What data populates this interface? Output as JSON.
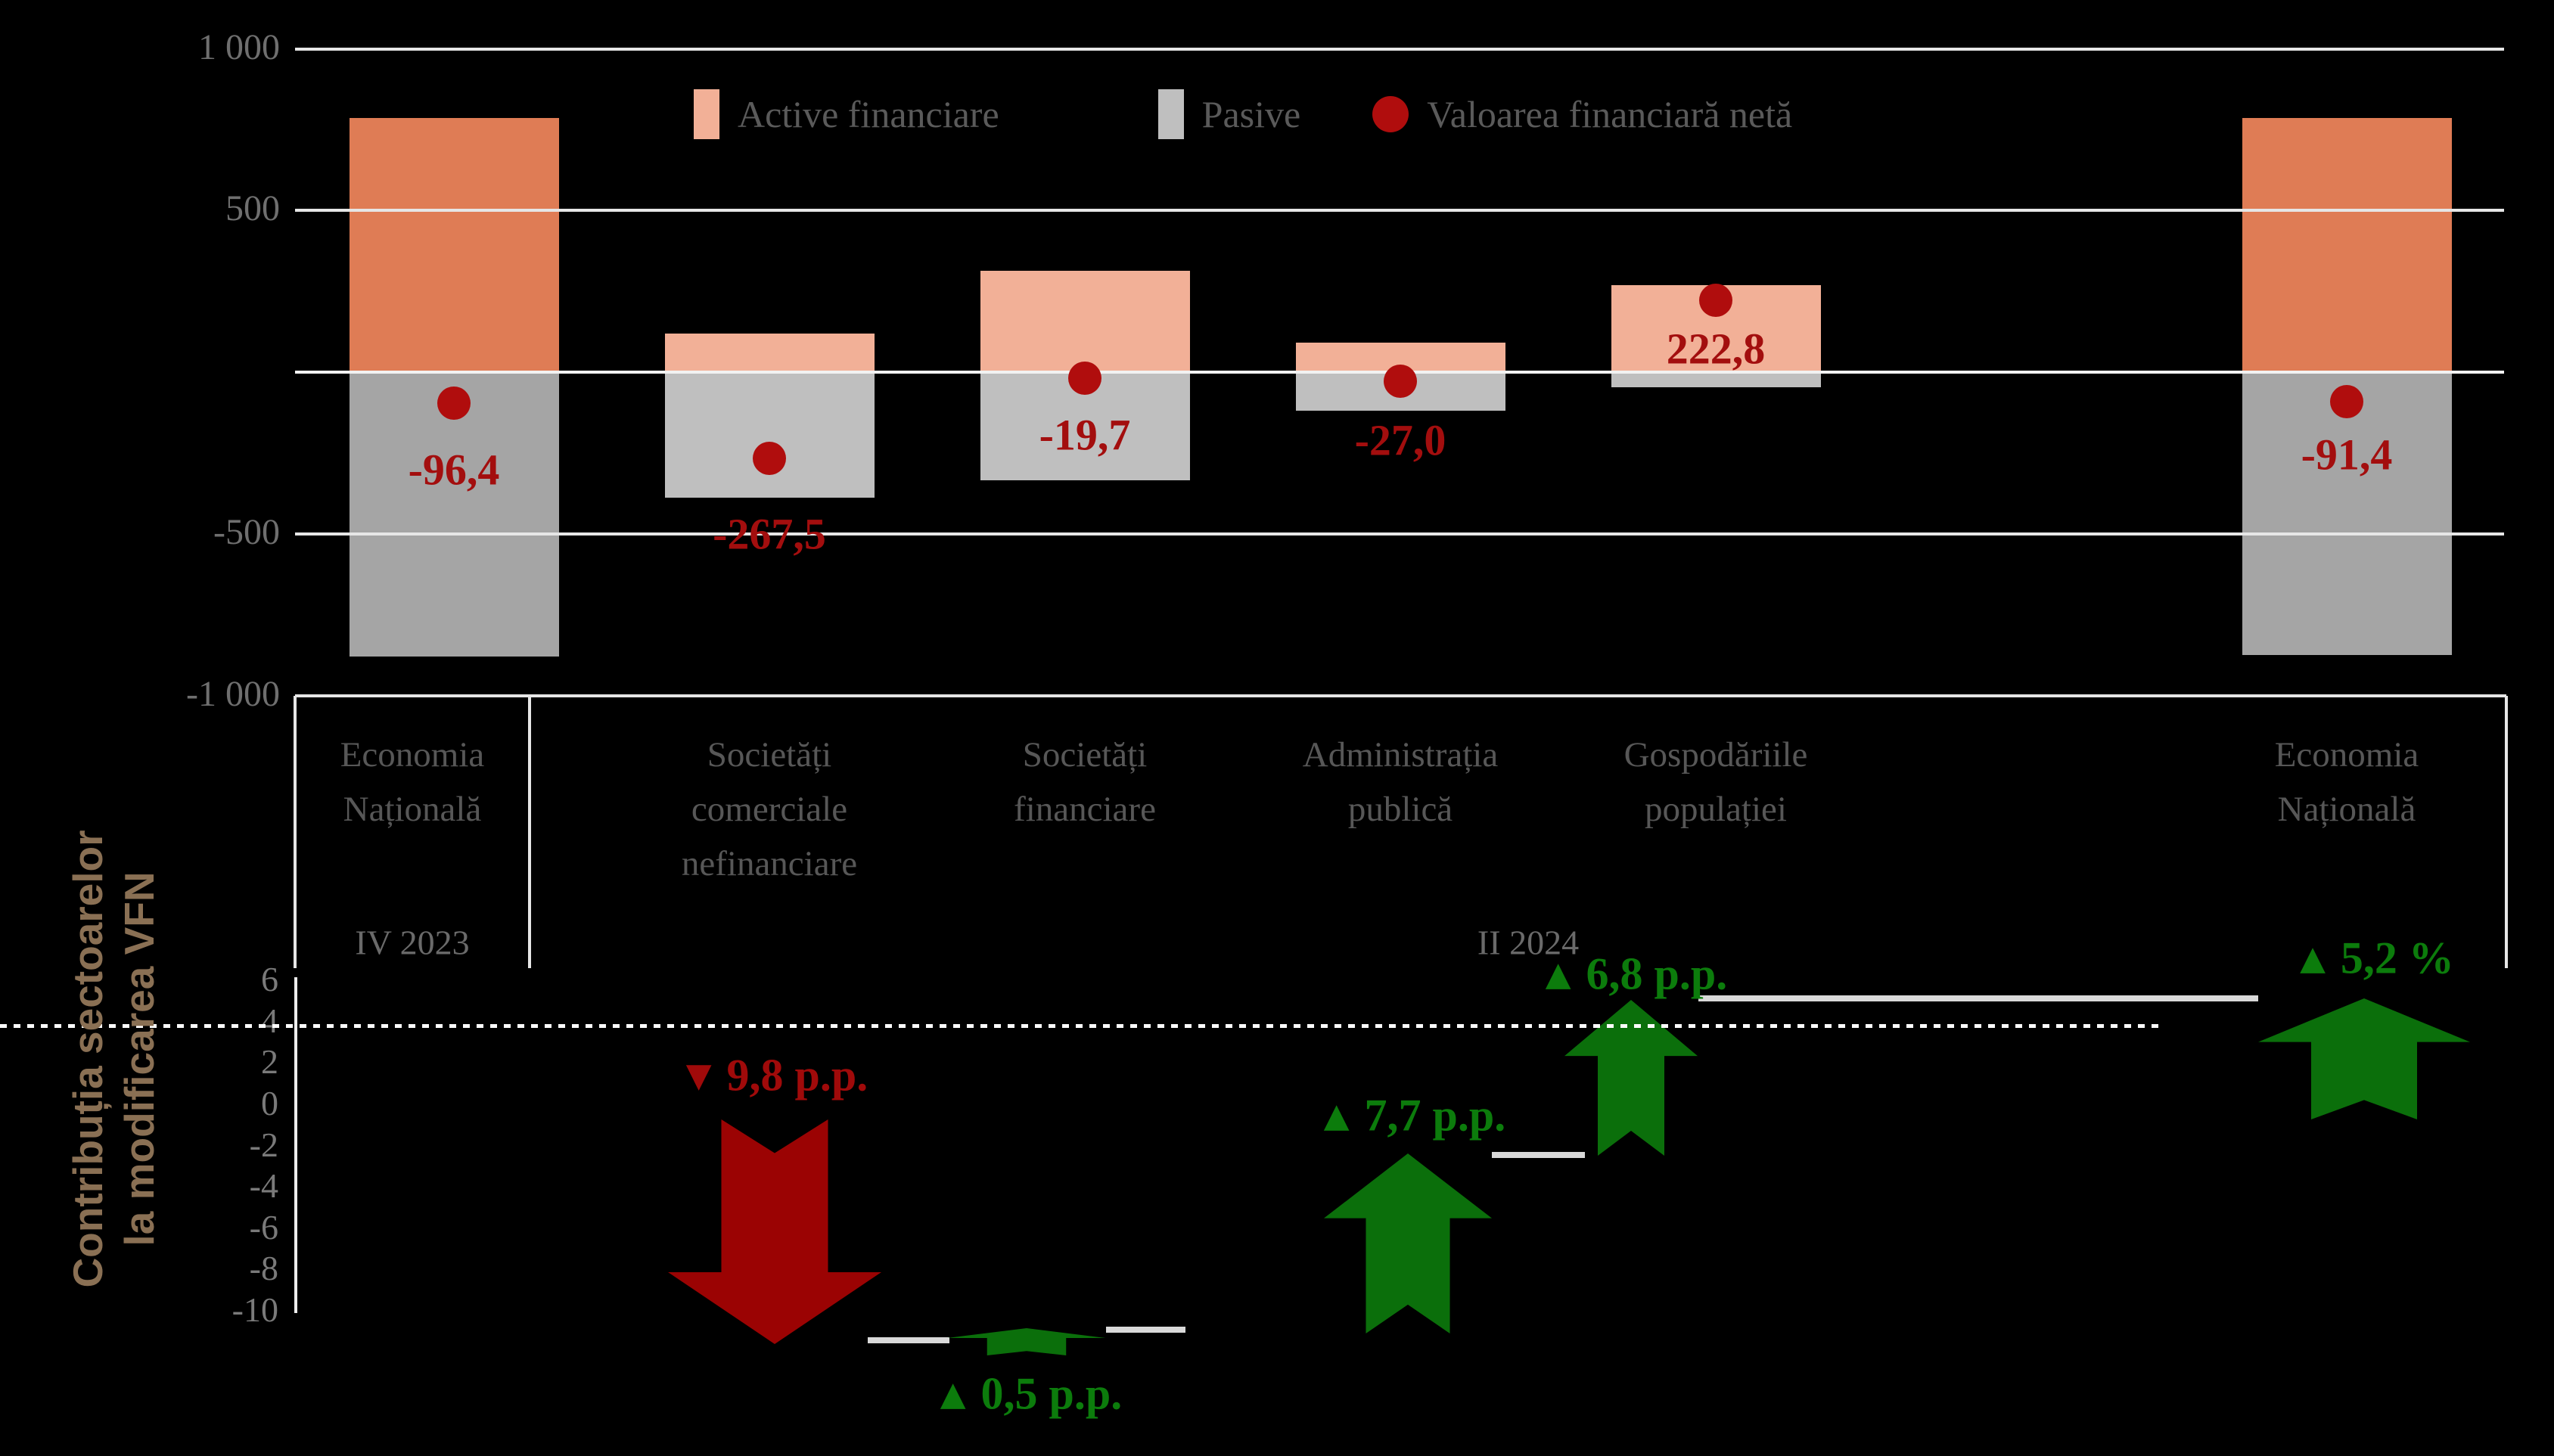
{
  "colors": {
    "background": "#000000",
    "active_dark": "#DF7C55",
    "active_light": "#F2B097",
    "pasive_dark": "#A5A5A5",
    "pasive_light": "#BFBFBF",
    "net_dot": "#B00D0D",
    "net_label_text": "#A30E0E",
    "gridline": "#E6E6E6",
    "axis_text": "#6F6F6F",
    "legend_text": "#5A5A5A",
    "category_text": "#575757",
    "green_arrow": "#0B6F0B",
    "green_text": "#0C7C0C",
    "red_arrow": "#9B0303",
    "red_text": "#A00A0A",
    "left_label_text": "#8A7054",
    "connector": "#D9D9D9",
    "dashed_line": "#FFFFFF"
  },
  "legend": {
    "items": [
      {
        "label": "Active financiare",
        "marker": "square",
        "color": "#F2B097"
      },
      {
        "label": "Pasive",
        "marker": "square",
        "color": "#BFBFBF"
      },
      {
        "label": "Valoarea financiară netă",
        "marker": "circle",
        "color": "#B00D0D"
      }
    ]
  },
  "left_axis_label": {
    "line1": "Contribuția sectoarelor",
    "line2": "la modificarea VFN"
  },
  "chart_data": [
    {
      "type": "bar",
      "categories": [
        {
          "name": "Economia Națională",
          "lines": [
            "Economia",
            "Națională"
          ]
        },
        {
          "name": "Societăți comerciale nefinanciare",
          "lines": [
            "Societăți",
            "comerciale",
            "nefinanciare"
          ]
        },
        {
          "name": "Societăți financiare",
          "lines": [
            "Societăți",
            "financiare"
          ]
        },
        {
          "name": "Administrația publică",
          "lines": [
            "Administrația",
            "publică"
          ]
        },
        {
          "name": "Gospodăriile populației",
          "lines": [
            "Gospodăriile",
            "populației"
          ]
        },
        {
          "name": "Economia Națională",
          "lines": [
            "Economia",
            "Națională"
          ]
        }
      ],
      "period_labels": [
        "IV 2023",
        "II 2024"
      ],
      "ylim": [
        -1000,
        1000
      ],
      "y_ticks": [
        {
          "value": 1000,
          "label": "1 000"
        },
        {
          "value": 500,
          "label": "500"
        },
        {
          "value": -500,
          "label": "-500"
        },
        {
          "value": -1000,
          "label": "-1 000"
        }
      ],
      "grid_values": [
        1000,
        500,
        0,
        -500
      ],
      "series": [
        {
          "name": "Active financiare",
          "values": [
            785,
            120,
            314,
            92,
            270,
            785
          ]
        },
        {
          "name": "Pasive",
          "values": [
            880,
            388,
            334,
            119,
            47,
            876
          ]
        },
        {
          "name": "Valoarea financiară netă",
          "values": [
            -96.4,
            -267.5,
            -19.7,
            -27.0,
            222.8,
            -91.4
          ],
          "labels": [
            "-96,4",
            "-267,5",
            "-19,7",
            "-27,0",
            "222,8",
            "-91,4"
          ]
        }
      ]
    },
    {
      "type": "waterfall",
      "ylabel": "Contribuția sectoarelor la modificarea VFN",
      "ylim": [
        -10,
        6
      ],
      "y_ticks": [
        6,
        4,
        2,
        0,
        -2,
        -4,
        -6,
        -8,
        -10
      ],
      "reference_line_value": 3.8,
      "steps": [
        {
          "category": "Societăți comerciale nefinanciare",
          "marker": "▼",
          "label": "9,8 p.p.",
          "value": -9.8,
          "direction": "down"
        },
        {
          "category": "Societăți financiare",
          "marker": "▲",
          "label": "0,5 p.p.",
          "value": 0.5,
          "direction": "up"
        },
        {
          "category": "Administrația publică",
          "marker": "▲",
          "label": "7,7 p.p.",
          "value": 7.7,
          "direction": "up"
        },
        {
          "category": "Gospodăriile populației",
          "marker": "▲",
          "label": "6,8 p.p.",
          "value": 6.8,
          "direction": "up"
        },
        {
          "category": "Economia Națională",
          "marker": "▲",
          "label": "5,2 %",
          "value": 5.2,
          "direction": "up",
          "role": "total"
        }
      ]
    }
  ]
}
